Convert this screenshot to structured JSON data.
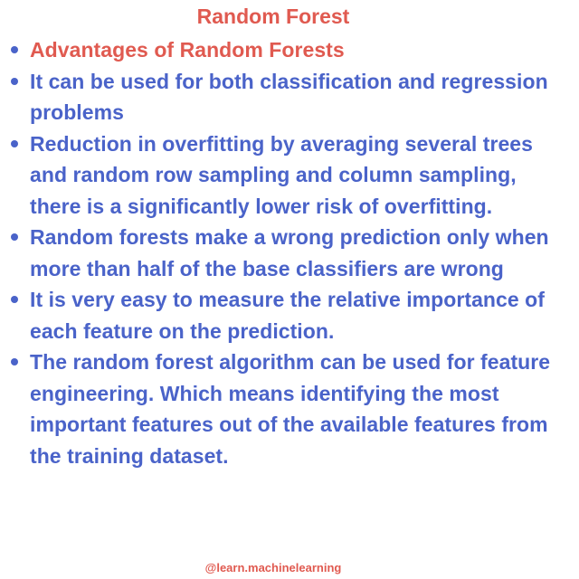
{
  "title": "Random Forest",
  "bullets": [
    {
      "text": "Advantages of Random Forests",
      "color": "#e05a50"
    },
    {
      "text": "It can be used for both classification and regression problems",
      "color": "#4a63c9"
    },
    {
      "text": "Reduction in overfitting by averaging several trees and random row sampling and column sampling, there is a significantly lower risk of overfitting.",
      "color": "#4a63c9"
    },
    {
      "text": "Random forests make a wrong prediction only when more than half of the base classifiers are wrong",
      "color": "#4a63c9"
    },
    {
      "text": "It is very easy to measure the relative importance of each feature on the prediction.",
      "color": "#4a63c9"
    },
    {
      "text": "The random forest algorithm can be used for feature engineering. Which means identifying the most important features out of the available features from the training dataset.",
      "color": "#4a63c9"
    }
  ],
  "footer": "@learn.machinelearning",
  "colors": {
    "title": "#e05a50",
    "body": "#4a63c9",
    "bullet_dot": "#4a63c9",
    "background": "#ffffff"
  }
}
